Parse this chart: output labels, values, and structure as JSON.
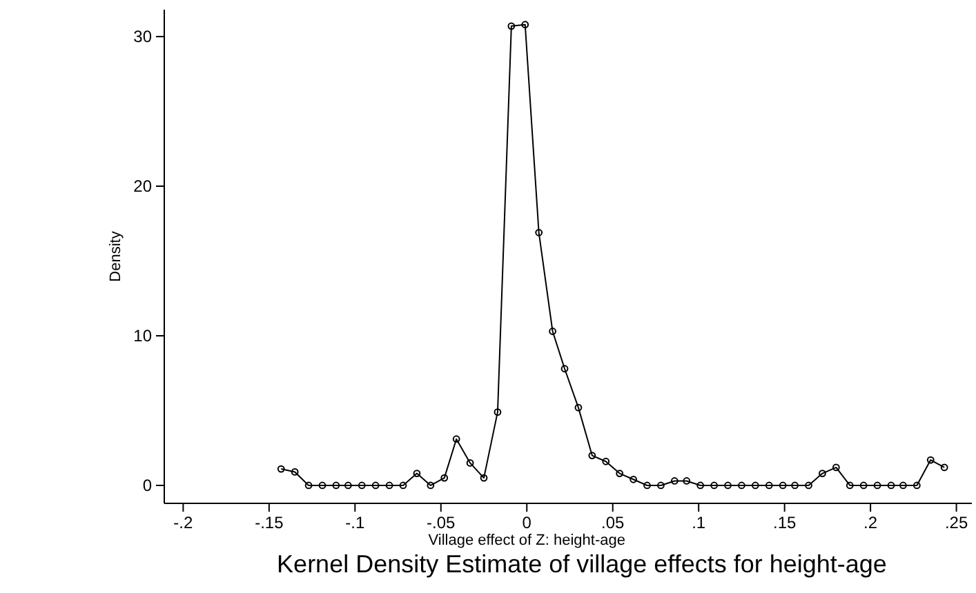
{
  "chart_data": {
    "type": "line",
    "title": "Kernel Density Estimate of village effects for height-age",
    "xlabel": "Village effect of Z: height-age",
    "ylabel": "Density",
    "x": [
      -0.143,
      -0.135,
      -0.127,
      -0.119,
      -0.111,
      -0.104,
      -0.096,
      -0.088,
      -0.08,
      -0.072,
      -0.064,
      -0.056,
      -0.048,
      -0.041,
      -0.033,
      -0.025,
      -0.017,
      -0.009,
      -0.001,
      0.007,
      0.015,
      0.022,
      0.03,
      0.038,
      0.046,
      0.054,
      0.062,
      0.07,
      0.078,
      0.086,
      0.093,
      0.101,
      0.109,
      0.117,
      0.125,
      0.133,
      0.141,
      0.149,
      0.156,
      0.164,
      0.172,
      0.18,
      0.188,
      0.196,
      0.204,
      0.212,
      0.219,
      0.227,
      0.235,
      0.243
    ],
    "series": [
      {
        "color": "#000000",
        "values": [
          1.1,
          0.9,
          0,
          0,
          0,
          0,
          0,
          0,
          0,
          0,
          0.8,
          0,
          0.5,
          3.1,
          1.5,
          0.5,
          4.9,
          30.7,
          30.8,
          16.9,
          10.3,
          7.8,
          5.2,
          2.0,
          1.6,
          0.8,
          0.4,
          0,
          0,
          0.3,
          0.3,
          0,
          0,
          0,
          0,
          0,
          0,
          0,
          0,
          0,
          0.8,
          1.2,
          0,
          0,
          0,
          0,
          0,
          0,
          1.7,
          1.2
        ]
      }
    ],
    "xlim": [
      -0.211,
      0.259
    ],
    "ylim": [
      -1.2,
      31.8
    ],
    "xticks": [
      {
        "value": -0.2,
        "label": "-.2"
      },
      {
        "value": -0.15,
        "label": "-.15"
      },
      {
        "value": -0.1,
        "label": "-.1"
      },
      {
        "value": -0.05,
        "label": "-.05"
      },
      0,
      {
        "value": 0.05,
        "label": ".05"
      },
      {
        "value": 0.1,
        "label": ".1"
      },
      {
        "value": 0.15,
        "label": ".15"
      },
      {
        "value": 0.2,
        "label": ".2"
      },
      {
        "value": 0.25,
        "label": ".25"
      }
    ],
    "yticks": [
      0,
      10,
      20,
      30
    ],
    "grid": false,
    "marker": "circle",
    "line_style": "solid"
  }
}
